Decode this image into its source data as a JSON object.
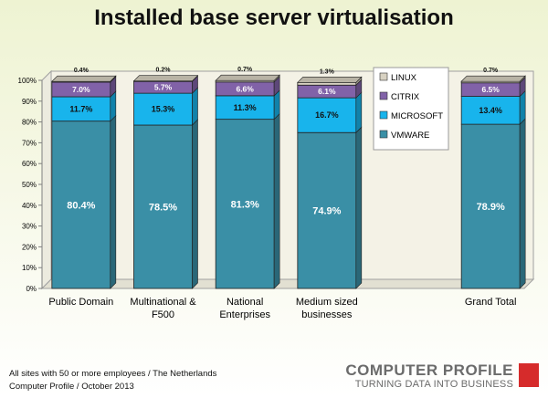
{
  "title": "Installed base server virtualisation",
  "footer": {
    "line1": "All sites with 50 or more employees / The Netherlands",
    "line2": "Computer Profile / October 2013"
  },
  "logo": {
    "main": "COMPUTER PROFILE",
    "sub": "TURNING DATA INTO BUSINESS"
  },
  "colors": {
    "vmware": "#3a8fa6",
    "microsoft": "#18b4ec",
    "citrix": "#8162a8",
    "linux": "#d8d2c2",
    "brand_red": "#d62b2b"
  },
  "chart_data": {
    "type": "bar",
    "stacked": true,
    "categories": [
      "Public Domain",
      "Multinational & F500",
      "National Enterprises",
      "Medium sized businesses",
      "",
      "Grand Total"
    ],
    "category_lines": [
      [
        "Public Domain"
      ],
      [
        "Multinational &",
        "F500"
      ],
      [
        "National",
        "Enterprises"
      ],
      [
        "Medium sized",
        "businesses"
      ],
      [],
      [
        "Grand Total"
      ]
    ],
    "series": [
      {
        "name": "VMWARE",
        "values": [
          80.4,
          78.5,
          81.3,
          74.9,
          null,
          78.9
        ],
        "labels": [
          "80.4%",
          "78.5%",
          "81.3%",
          "74.9%",
          "",
          "78.9%"
        ]
      },
      {
        "name": "MICROSOFT",
        "values": [
          11.7,
          15.3,
          11.3,
          16.7,
          null,
          13.4
        ],
        "labels": [
          "11.7%",
          "15.3%",
          "11.3%",
          "16.7%",
          "",
          "13.4%"
        ]
      },
      {
        "name": "CITRIX",
        "values": [
          7.0,
          5.7,
          6.6,
          6.1,
          null,
          6.5
        ],
        "labels": [
          "7.0%",
          "5.7%",
          "6.6%",
          "6.1%",
          "",
          "6.5%"
        ]
      },
      {
        "name": "LINUX",
        "values": [
          0.4,
          0.2,
          0.7,
          1.3,
          null,
          0.7
        ],
        "labels": [
          "0.4%",
          "0.2%",
          "0.7%",
          "1.3%",
          "",
          "0.7%"
        ]
      }
    ],
    "ylim": [
      0,
      100
    ],
    "yticks": [
      "0%",
      "10%",
      "20%",
      "30%",
      "40%",
      "50%",
      "60%",
      "70%",
      "80%",
      "90%",
      "100%"
    ],
    "legend": {
      "position": "upper-right-inside",
      "order": [
        "LINUX",
        "CITRIX",
        "MICROSOFT",
        "VMWARE"
      ]
    },
    "grid": false
  }
}
